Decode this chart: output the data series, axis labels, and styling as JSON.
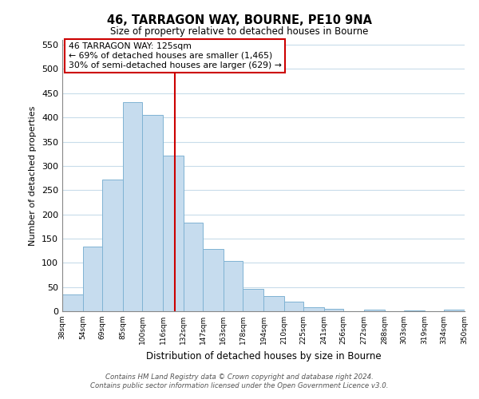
{
  "title": "46, TARRAGON WAY, BOURNE, PE10 9NA",
  "subtitle": "Size of property relative to detached houses in Bourne",
  "xlabel": "Distribution of detached houses by size in Bourne",
  "ylabel": "Number of detached properties",
  "bar_left_edges": [
    38,
    54,
    69,
    85,
    100,
    116,
    132,
    147,
    163,
    178,
    194,
    210,
    225,
    241,
    256,
    272,
    288,
    303,
    319,
    334
  ],
  "bar_heights": [
    35,
    133,
    272,
    432,
    405,
    322,
    183,
    128,
    103,
    46,
    31,
    20,
    8,
    5,
    0,
    4,
    0,
    2,
    0,
    3
  ],
  "bar_widths": [
    16,
    15,
    16,
    15,
    16,
    16,
    15,
    16,
    15,
    16,
    16,
    15,
    16,
    15,
    16,
    16,
    15,
    16,
    15,
    16
  ],
  "tick_labels": [
    "38sqm",
    "54sqm",
    "69sqm",
    "85sqm",
    "100sqm",
    "116sqm",
    "132sqm",
    "147sqm",
    "163sqm",
    "178sqm",
    "194sqm",
    "210sqm",
    "225sqm",
    "241sqm",
    "256sqm",
    "272sqm",
    "288sqm",
    "303sqm",
    "319sqm",
    "334sqm",
    "350sqm"
  ],
  "bar_color": "#c6dcee",
  "bar_edge_color": "#7fb3d3",
  "grid_color": "#c8dcea",
  "vline_x": 125,
  "vline_color": "#cc0000",
  "annotation_title": "46 TARRAGON WAY: 125sqm",
  "annotation_line1": "← 69% of detached houses are smaller (1,465)",
  "annotation_line2": "30% of semi-detached houses are larger (629) →",
  "annotation_box_color": "#cc0000",
  "ylim": [
    0,
    560
  ],
  "yticks": [
    0,
    50,
    100,
    150,
    200,
    250,
    300,
    350,
    400,
    450,
    500,
    550
  ],
  "footer_line1": "Contains HM Land Registry data © Crown copyright and database right 2024.",
  "footer_line2": "Contains public sector information licensed under the Open Government Licence v3.0."
}
